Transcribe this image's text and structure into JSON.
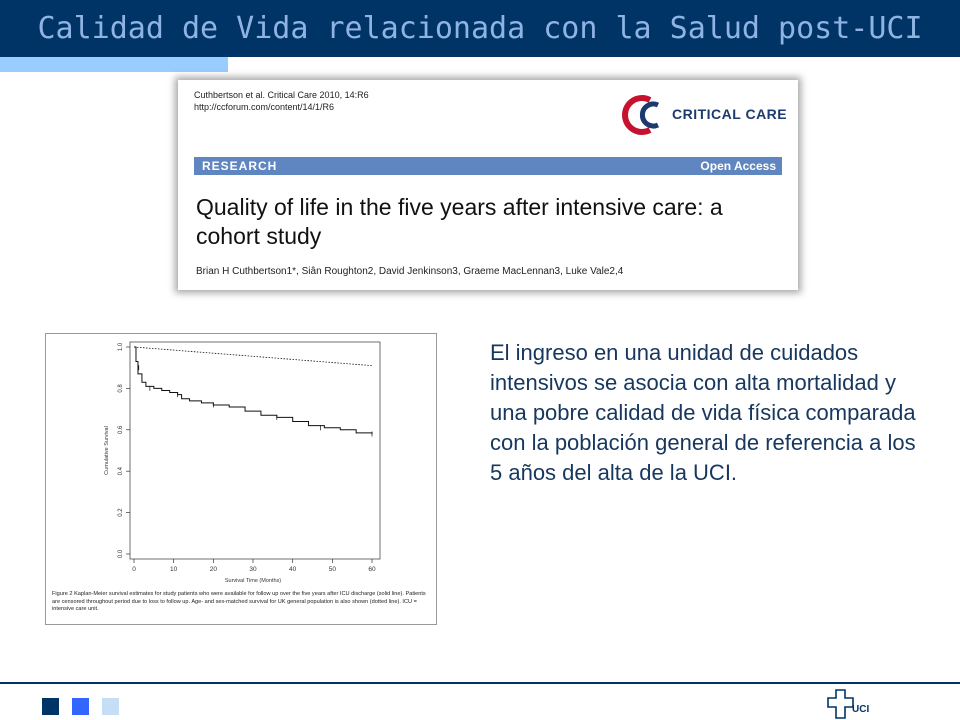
{
  "slide": {
    "title": "Calidad de Vida relacionada con la Salud post-UCI",
    "body_text": "El ingreso en una unidad de cuidados intensivos se asocia con alta mortalidad y una pobre calidad de vida física comparada con la población general de referencia a los 5 años del alta de la UCI.",
    "footer_logo_text": "UCI"
  },
  "paper": {
    "citation_line1": "Cuthbertson et al. Critical Care 2010, 14:R6",
    "citation_line2": "http://ccforum.com/content/14/1/R6",
    "journal_name": "CRITICAL CARE",
    "section_label": "RESEARCH",
    "access_label": "Open Access",
    "title": "Quality of life in the five years after intensive care: a cohort study",
    "authors": "Brian H Cuthbertson1*, Siân Roughton2, David Jenkinson3, Graeme MacLennan3, Luke Vale2,4"
  },
  "figure": {
    "caption": "Figure 2 Kaplan-Meier survival estimates for study patients who were available for follow up over the five years after ICU discharge (solid line). Patients are censored throughout period due to loss to follow up. Age- and sex-matched survival for UK general population is also shown (dotted line). ICU = intensive care unit."
  },
  "chart_data": {
    "type": "line",
    "xlabel": "Survival Time (Months)",
    "ylabel": "Cumulative Survival",
    "xlim": [
      0,
      60
    ],
    "ylim": [
      0.0,
      1.0
    ],
    "xticks": [
      0,
      10,
      20,
      30,
      40,
      50,
      60
    ],
    "yticks": [
      0.0,
      0.2,
      0.4,
      0.6,
      0.8,
      1.0
    ],
    "series": [
      {
        "style": "solid",
        "x": [
          0,
          0.5,
          1,
          2,
          3,
          5,
          7,
          9,
          11,
          12,
          14,
          17,
          20,
          24,
          28,
          32,
          36,
          40,
          44,
          48,
          52,
          56,
          60
        ],
        "y": [
          1.0,
          0.93,
          0.87,
          0.83,
          0.81,
          0.8,
          0.79,
          0.78,
          0.77,
          0.75,
          0.74,
          0.73,
          0.72,
          0.71,
          0.69,
          0.67,
          0.66,
          0.64,
          0.62,
          0.61,
          0.6,
          0.585,
          0.58
        ]
      },
      {
        "style": "dotted",
        "x": [
          0,
          60
        ],
        "y": [
          1.0,
          0.91
        ]
      }
    ]
  }
}
